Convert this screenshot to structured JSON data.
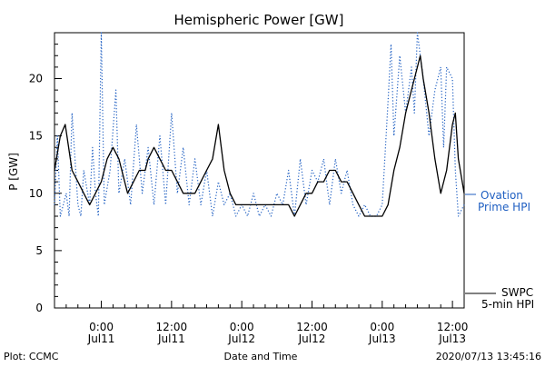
{
  "chart_data": {
    "type": "line",
    "title": "Hemispheric Power [GW]",
    "ylabel": "P [GW]",
    "xlabel": "Date and Time",
    "ylim": [
      0,
      24
    ],
    "yticks": [
      0,
      5,
      10,
      15,
      20
    ],
    "xlim": [
      "2020-07-10 16:00",
      "2020-07-13 14:00"
    ],
    "xticks": [
      {
        "t": "2020-07-11 00:00",
        "time": "0:00",
        "date": "Jul11"
      },
      {
        "t": "2020-07-11 12:00",
        "time": "12:00",
        "date": "Jul11"
      },
      {
        "t": "2020-07-12 00:00",
        "time": "0:00",
        "date": "Jul12"
      },
      {
        "t": "2020-07-12 12:00",
        "time": "12:00",
        "date": "Jul12"
      },
      {
        "t": "2020-07-13 00:00",
        "time": "0:00",
        "date": "Jul13"
      },
      {
        "t": "2020-07-13 12:00",
        "time": "12:00",
        "date": "Jul13"
      }
    ],
    "series": [
      {
        "name": "SWPC 5-min HPI",
        "color": "#000000",
        "style": "solid",
        "points": [
          [
            "2020-07-10 16:00",
            12
          ],
          [
            "2020-07-10 17:00",
            15
          ],
          [
            "2020-07-10 17:50",
            16
          ],
          [
            "2020-07-10 19:00",
            12
          ],
          [
            "2020-07-10 20:00",
            11
          ],
          [
            "2020-07-10 21:00",
            10
          ],
          [
            "2020-07-10 22:00",
            9
          ],
          [
            "2020-07-10 23:00",
            10
          ],
          [
            "2020-07-11 00:00",
            11
          ],
          [
            "2020-07-11 01:00",
            13
          ],
          [
            "2020-07-11 02:00",
            14
          ],
          [
            "2020-07-11 03:00",
            13
          ],
          [
            "2020-07-11 04:30",
            10
          ],
          [
            "2020-07-11 05:30",
            11
          ],
          [
            "2020-07-11 06:30",
            12
          ],
          [
            "2020-07-11 07:30",
            12
          ],
          [
            "2020-07-11 08:00",
            13
          ],
          [
            "2020-07-11 09:00",
            14
          ],
          [
            "2020-07-11 10:00",
            13
          ],
          [
            "2020-07-11 11:00",
            12
          ],
          [
            "2020-07-11 12:00",
            12
          ],
          [
            "2020-07-11 13:00",
            11
          ],
          [
            "2020-07-11 14:00",
            10
          ],
          [
            "2020-07-11 15:00",
            10
          ],
          [
            "2020-07-11 16:00",
            10
          ],
          [
            "2020-07-11 17:00",
            11
          ],
          [
            "2020-07-11 18:00",
            12
          ],
          [
            "2020-07-11 19:00",
            13
          ],
          [
            "2020-07-11 20:00",
            16
          ],
          [
            "2020-07-11 21:00",
            12
          ],
          [
            "2020-07-11 22:00",
            10
          ],
          [
            "2020-07-11 23:00",
            9
          ],
          [
            "2020-07-12 00:00",
            9
          ],
          [
            "2020-07-12 02:00",
            9
          ],
          [
            "2020-07-12 04:00",
            9
          ],
          [
            "2020-07-12 06:00",
            9
          ],
          [
            "2020-07-12 08:00",
            9
          ],
          [
            "2020-07-12 09:00",
            8
          ],
          [
            "2020-07-12 10:00",
            9
          ],
          [
            "2020-07-12 11:00",
            10
          ],
          [
            "2020-07-12 12:00",
            10
          ],
          [
            "2020-07-12 13:00",
            11
          ],
          [
            "2020-07-12 14:00",
            11
          ],
          [
            "2020-07-12 15:00",
            12
          ],
          [
            "2020-07-12 16:00",
            12
          ],
          [
            "2020-07-12 17:00",
            11
          ],
          [
            "2020-07-12 18:00",
            11
          ],
          [
            "2020-07-12 19:00",
            10
          ],
          [
            "2020-07-12 20:00",
            9
          ],
          [
            "2020-07-12 21:00",
            8
          ],
          [
            "2020-07-12 22:00",
            8
          ],
          [
            "2020-07-12 23:00",
            8
          ],
          [
            "2020-07-13 00:00",
            8
          ],
          [
            "2020-07-13 01:00",
            9
          ],
          [
            "2020-07-13 02:00",
            12
          ],
          [
            "2020-07-13 03:00",
            14
          ],
          [
            "2020-07-13 04:00",
            17
          ],
          [
            "2020-07-13 05:00",
            19
          ],
          [
            "2020-07-13 06:00",
            21
          ],
          [
            "2020-07-13 06:30",
            22
          ],
          [
            "2020-07-13 07:00",
            20
          ],
          [
            "2020-07-13 08:00",
            17
          ],
          [
            "2020-07-13 09:00",
            13
          ],
          [
            "2020-07-13 10:00",
            10
          ],
          [
            "2020-07-13 11:00",
            12
          ],
          [
            "2020-07-13 12:00",
            16
          ],
          [
            "2020-07-13 12:30",
            17
          ],
          [
            "2020-07-13 13:00",
            13
          ],
          [
            "2020-07-13 14:00",
            10
          ]
        ]
      },
      {
        "name": "Ovation Prime HPI",
        "color": "#1f5fc2",
        "style": "dotted",
        "points": [
          [
            "2020-07-10 16:00",
            9
          ],
          [
            "2020-07-10 16:30",
            15
          ],
          [
            "2020-07-10 17:00",
            8
          ],
          [
            "2020-07-10 18:00",
            10
          ],
          [
            "2020-07-10 18:30",
            8
          ],
          [
            "2020-07-10 19:00",
            17
          ],
          [
            "2020-07-10 20:00",
            9
          ],
          [
            "2020-07-10 20:30",
            8
          ],
          [
            "2020-07-10 21:00",
            12
          ],
          [
            "2020-07-10 22:00",
            9
          ],
          [
            "2020-07-10 22:30",
            14
          ],
          [
            "2020-07-10 23:00",
            10
          ],
          [
            "2020-07-10 23:30",
            8
          ],
          [
            "2020-07-11 00:00",
            24
          ],
          [
            "2020-07-11 00:30",
            9
          ],
          [
            "2020-07-11 01:30",
            12
          ],
          [
            "2020-07-11 02:30",
            19
          ],
          [
            "2020-07-11 03:00",
            10
          ],
          [
            "2020-07-11 04:00",
            13
          ],
          [
            "2020-07-11 05:00",
            9
          ],
          [
            "2020-07-11 06:00",
            16
          ],
          [
            "2020-07-11 07:00",
            10
          ],
          [
            "2020-07-11 08:00",
            14
          ],
          [
            "2020-07-11 09:00",
            9
          ],
          [
            "2020-07-11 10:00",
            15
          ],
          [
            "2020-07-11 11:00",
            9
          ],
          [
            "2020-07-11 12:00",
            17
          ],
          [
            "2020-07-11 13:00",
            10
          ],
          [
            "2020-07-11 14:00",
            14
          ],
          [
            "2020-07-11 15:00",
            9
          ],
          [
            "2020-07-11 16:00",
            13
          ],
          [
            "2020-07-11 17:00",
            9
          ],
          [
            "2020-07-11 18:00",
            12
          ],
          [
            "2020-07-11 19:00",
            8
          ],
          [
            "2020-07-11 20:00",
            11
          ],
          [
            "2020-07-11 21:00",
            9
          ],
          [
            "2020-07-11 22:00",
            10
          ],
          [
            "2020-07-11 23:00",
            8
          ],
          [
            "2020-07-12 00:00",
            9
          ],
          [
            "2020-07-12 01:00",
            8
          ],
          [
            "2020-07-12 02:00",
            10
          ],
          [
            "2020-07-12 03:00",
            8
          ],
          [
            "2020-07-12 04:00",
            9
          ],
          [
            "2020-07-12 05:00",
            8
          ],
          [
            "2020-07-12 06:00",
            10
          ],
          [
            "2020-07-12 07:00",
            9
          ],
          [
            "2020-07-12 08:00",
            12
          ],
          [
            "2020-07-12 09:00",
            8
          ],
          [
            "2020-07-12 10:00",
            13
          ],
          [
            "2020-07-12 11:00",
            9
          ],
          [
            "2020-07-12 12:00",
            12
          ],
          [
            "2020-07-12 13:00",
            11
          ],
          [
            "2020-07-12 14:00",
            13
          ],
          [
            "2020-07-12 15:00",
            9
          ],
          [
            "2020-07-12 16:00",
            13
          ],
          [
            "2020-07-12 17:00",
            10
          ],
          [
            "2020-07-12 18:00",
            12
          ],
          [
            "2020-07-12 19:00",
            9
          ],
          [
            "2020-07-12 20:00",
            8
          ],
          [
            "2020-07-12 21:00",
            9
          ],
          [
            "2020-07-12 22:00",
            8
          ],
          [
            "2020-07-12 23:00",
            8
          ],
          [
            "2020-07-13 00:00",
            9
          ],
          [
            "2020-07-13 01:00",
            18
          ],
          [
            "2020-07-13 01:30",
            23
          ],
          [
            "2020-07-13 02:00",
            15
          ],
          [
            "2020-07-13 03:00",
            22
          ],
          [
            "2020-07-13 04:00",
            17
          ],
          [
            "2020-07-13 05:00",
            21
          ],
          [
            "2020-07-13 05:30",
            17
          ],
          [
            "2020-07-13 06:00",
            24
          ],
          [
            "2020-07-13 07:00",
            20
          ],
          [
            "2020-07-13 08:00",
            15
          ],
          [
            "2020-07-13 09:00",
            19
          ],
          [
            "2020-07-13 10:00",
            21
          ],
          [
            "2020-07-13 10:30",
            14
          ],
          [
            "2020-07-13 11:00",
            21
          ],
          [
            "2020-07-13 12:00",
            20
          ],
          [
            "2020-07-13 12:30",
            12
          ],
          [
            "2020-07-13 13:00",
            8
          ],
          [
            "2020-07-13 14:00",
            9
          ]
        ]
      }
    ],
    "legend": {
      "ovation_line1": "Ovation",
      "ovation_line2": "Prime HPI",
      "swpc_line1": "SWPC",
      "swpc_line2": "5-min HPI"
    },
    "grid": false
  },
  "footer": {
    "left": "Plot: CCMC",
    "center": "Date and Time",
    "right": "2020/07/13 13:45:16"
  }
}
